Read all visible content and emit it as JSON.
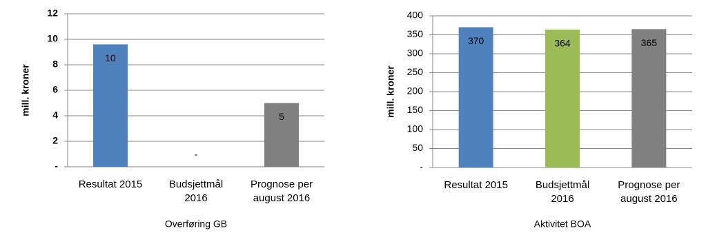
{
  "chart_data": [
    {
      "type": "bar",
      "ylabel": "mill. kroner",
      "xlabel": "Overføring GB",
      "categories": [
        "Resultat 2015",
        "Budsjettmål 2016",
        "Prognose per august 2016"
      ],
      "values": [
        9.6,
        0,
        5
      ],
      "value_labels": [
        "10",
        "-",
        "5"
      ],
      "colors": [
        "#4f81bd",
        "#9bbb59",
        "#808080"
      ],
      "ylim": [
        0,
        12
      ],
      "yticks": [
        {
          "value": 0,
          "label": "-"
        },
        2,
        4,
        6,
        8,
        10,
        12
      ],
      "grid": true
    },
    {
      "type": "bar",
      "ylabel": "mill. kroner",
      "xlabel": "Aktivitet BOA",
      "categories": [
        "Resultat 2015",
        "Budsjettmål 2016",
        "Prognose per august 2016"
      ],
      "values": [
        370,
        364,
        365
      ],
      "colors": [
        "#4f81bd",
        "#9bbb59",
        "#808080"
      ],
      "ylim": [
        0,
        400
      ],
      "yticks": [
        {
          "value": 0,
          "label": "-"
        },
        50,
        100,
        150,
        200,
        250,
        300,
        350,
        400
      ],
      "grid": true
    }
  ]
}
